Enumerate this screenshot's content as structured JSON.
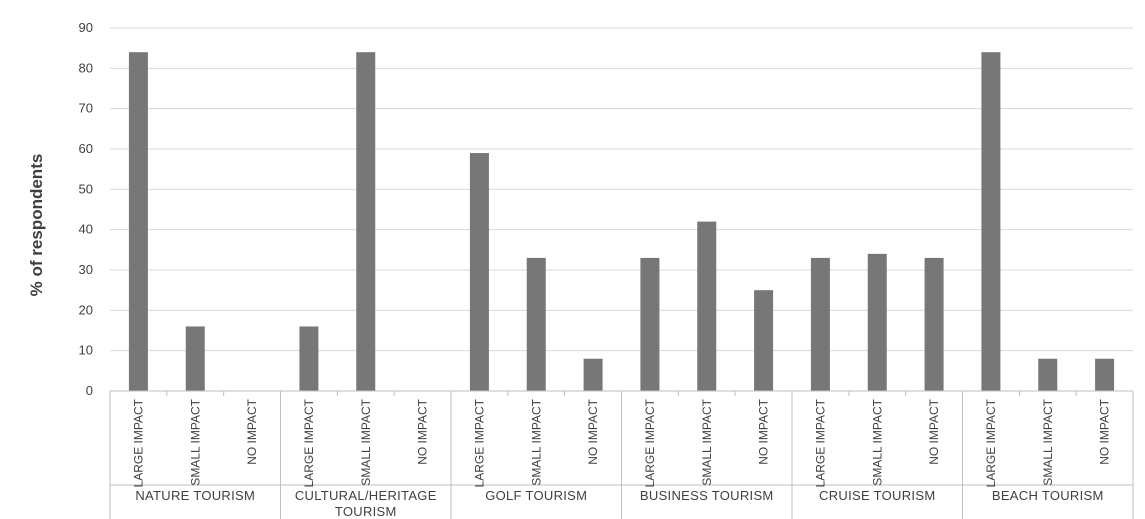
{
  "chart_data": {
    "type": "bar",
    "title": "",
    "ylabel": "% of respondents",
    "ylim": [
      0,
      90
    ],
    "yticks": [
      0,
      10,
      20,
      30,
      40,
      50,
      60,
      70,
      80,
      90
    ],
    "grid": true,
    "bar_color": "#777777",
    "groups": [
      {
        "label_lines": [
          "NATURE TOURISM"
        ],
        "categories": [
          "LARGE IMPACT",
          "SMALL IMPACT",
          "NO IMPACT"
        ],
        "values": [
          84,
          16,
          0
        ]
      },
      {
        "label_lines": [
          "CULTURAL/HERITAGE",
          "TOURISM"
        ],
        "categories": [
          "LARGE IMPACT",
          "SMALL IMPACT",
          "NO IMPACT"
        ],
        "values": [
          16,
          84,
          0
        ]
      },
      {
        "label_lines": [
          "GOLF TOURISM"
        ],
        "categories": [
          "LARGE IMPACT",
          "SMALL IMPACT",
          "NO IMPACT"
        ],
        "values": [
          59,
          33,
          8
        ]
      },
      {
        "label_lines": [
          "BUSINESS TOURISM"
        ],
        "categories": [
          "LARGE IMPACT",
          "SMALL IMPACT",
          "NO IMPACT"
        ],
        "values": [
          33,
          42,
          25
        ]
      },
      {
        "label_lines": [
          "CRUISE TOURISM"
        ],
        "categories": [
          "LARGE IMPACT",
          "SMALL IMPACT",
          "NO IMPACT"
        ],
        "values": [
          33,
          34,
          33
        ]
      },
      {
        "label_lines": [
          "BEACH TOURISM"
        ],
        "categories": [
          "LARGE IMPACT",
          "SMALL IMPACT",
          "NO IMPACT"
        ],
        "values": [
          84,
          8,
          8
        ]
      }
    ]
  }
}
